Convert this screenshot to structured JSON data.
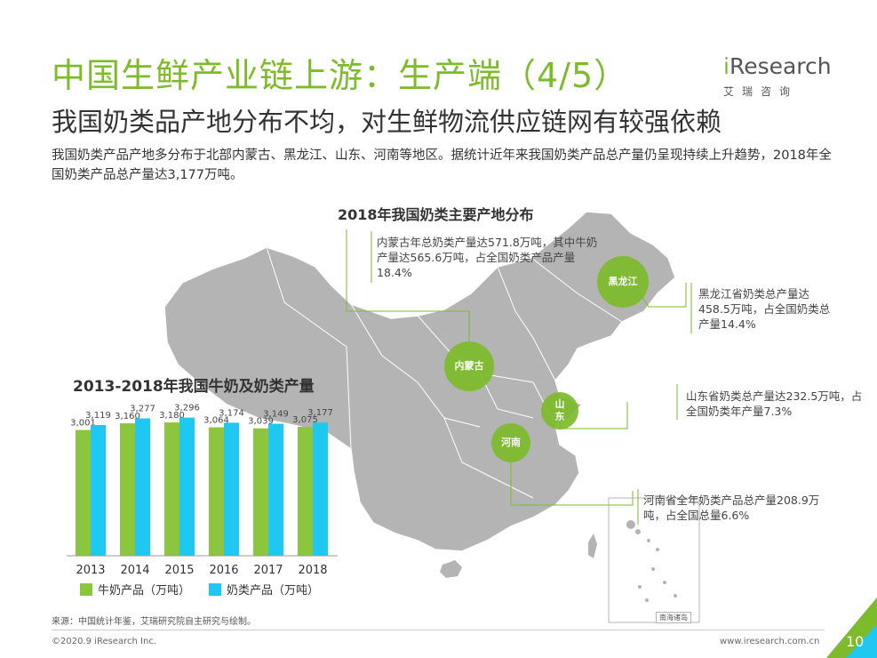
{
  "header": {
    "title": "中国生鲜产业链上游：生产端（4/5）",
    "subtitle": "我国奶类品产地分布不均，对生鲜物流供应链网有较强依赖",
    "summary": "我国奶类产品产地多分布于北部内蒙古、黑龙江、山东、河南等地区。据统计近年来我国奶类产品总产量仍呈现持续上升趋势，2018年全国奶类产品总产量达3,177万吨。"
  },
  "logo": {
    "i_letter": "i",
    "rest": "Research",
    "cn": "艾瑞咨询"
  },
  "map": {
    "title": "2018年我国奶类主要产地分布",
    "inset_label": "南海诸岛",
    "regions": [
      {
        "name": "黑龙江",
        "note": "黑龙江省奶类总产量达458.5万吨，占全国奶类总产量14.4%"
      },
      {
        "name": "内蒙古",
        "note": "内蒙古年总奶类产量达571.8万吨，其中牛奶产量达565.6万吨，占全国奶类产品产量18.4%"
      },
      {
        "name": "山东",
        "note": "山东省奶类总产量达232.5万吨，占全国奶类年产量7.3%"
      },
      {
        "name": "河南",
        "note": "河南省全年奶类产品总产量208.9万吨，占全国总量6.6%"
      }
    ]
  },
  "chart_data": {
    "type": "bar",
    "title": "2013-2018年我国牛奶及奶类产量",
    "categories": [
      "2013",
      "2014",
      "2015",
      "2016",
      "2017",
      "2018"
    ],
    "series": [
      {
        "name": "牛奶产品（万吨）",
        "values": [
          3001,
          3160,
          3180,
          3064,
          3039,
          3075
        ],
        "labels": [
          "3,001",
          "3,160",
          "3,180",
          "3,064",
          "3,039",
          "3,075"
        ],
        "color": "#8cc63f"
      },
      {
        "name": "奶类产品（万吨）",
        "values": [
          3119,
          3277,
          3296,
          3174,
          3149,
          3177
        ],
        "labels": [
          "3,119",
          "3,277",
          "3,296",
          "3,174",
          "3,149",
          "3,177"
        ],
        "color": "#1ec8f0"
      }
    ],
    "ylim": [
      0,
      3500
    ],
    "legend": "bottom-left",
    "grid": false
  },
  "footer": {
    "source": "来源：中国统计年鉴，艾瑞研究院自主研究与绘制。",
    "copyright": "©2020.9 iResearch Inc.",
    "website": "www.iresearch.com.cn",
    "page": "10"
  },
  "colors": {
    "accent": "#7dbb2a",
    "map_fill": "#b4b4b4",
    "milk": "#8cc63f",
    "dairy": "#1ec8f0"
  }
}
